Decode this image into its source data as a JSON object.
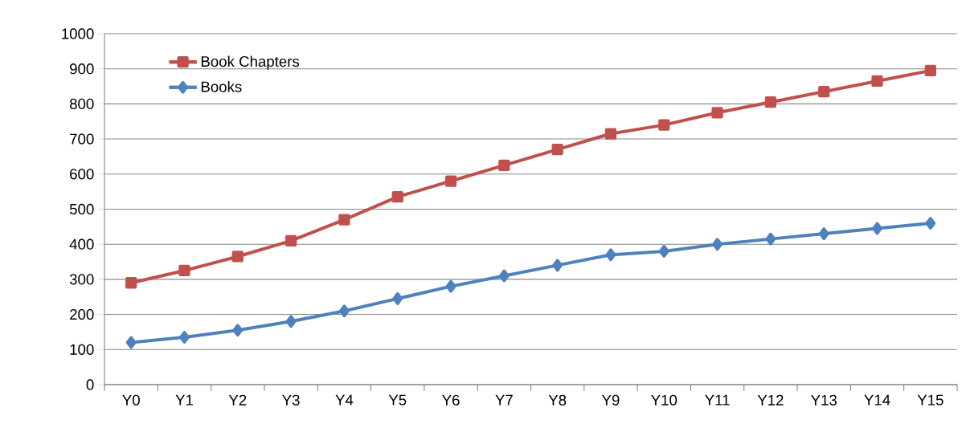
{
  "chart_data": {
    "type": "line",
    "categories": [
      "Y0",
      "Y1",
      "Y2",
      "Y3",
      "Y4",
      "Y5",
      "Y6",
      "Y7",
      "Y8",
      "Y9",
      "Y10",
      "Y11",
      "Y12",
      "Y13",
      "Y14",
      "Y15"
    ],
    "series": [
      {
        "name": "Book Chapters",
        "color": "#c0504d",
        "marker": "square",
        "values": [
          290,
          325,
          365,
          410,
          470,
          535,
          580,
          625,
          670,
          715,
          740,
          775,
          805,
          835,
          865,
          895
        ]
      },
      {
        "name": "Books",
        "color": "#4f81bd",
        "marker": "diamond",
        "values": [
          120,
          135,
          155,
          180,
          210,
          245,
          280,
          310,
          340,
          370,
          380,
          400,
          415,
          430,
          445,
          460
        ]
      }
    ],
    "ylim": [
      0,
      1000
    ],
    "yticks": [
      0,
      100,
      200,
      300,
      400,
      500,
      600,
      700,
      800,
      900,
      1000
    ],
    "grid": "y",
    "legend": "top left",
    "line_style": "solid"
  }
}
